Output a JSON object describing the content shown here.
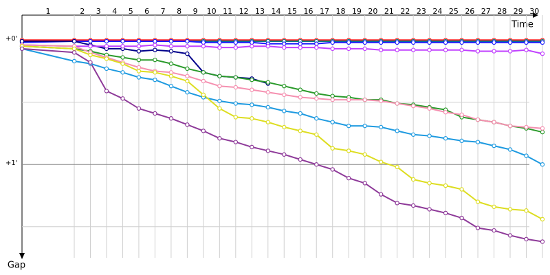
{
  "chart_data": {
    "type": "line",
    "x_label": "Time",
    "y_label": "Gap",
    "x": [
      0,
      1,
      2,
      3,
      4,
      5,
      6,
      7,
      8,
      9,
      10,
      11,
      12,
      13,
      14,
      15,
      16,
      17,
      18,
      19,
      20,
      21,
      22,
      23,
      24,
      25,
      26,
      27,
      28,
      29,
      30
    ],
    "xlim": [
      0,
      30
    ],
    "xticks": [
      1,
      2,
      3,
      4,
      5,
      6,
      7,
      8,
      9,
      10,
      11,
      12,
      13,
      14,
      15,
      16,
      17,
      18,
      19,
      20,
      21,
      22,
      23,
      24,
      25,
      26,
      27,
      28,
      29,
      30
    ],
    "ylim": [
      -0.2,
      1.75
    ],
    "y_inverted": true,
    "yticks": [
      {
        "value": 0,
        "label": "+0'"
      },
      {
        "value": 1,
        "label": "+1'"
      }
    ],
    "minor_yticks": [
      0.5,
      1.5
    ],
    "grid": true,
    "series": [
      {
        "color": "#ff2020",
        "values": [
          0,
          0,
          0,
          0,
          0,
          0,
          0,
          0,
          0,
          0,
          0,
          0,
          0,
          0,
          0,
          0,
          0,
          0,
          0,
          0,
          0,
          0,
          0,
          0,
          0,
          0,
          0,
          0,
          0,
          0,
          0
        ]
      },
      {
        "color": "#008080",
        "values": [
          0.01,
          0.01,
          0.01,
          0.01,
          0.01,
          0.01,
          0.01,
          0.01,
          0.01,
          0.01,
          0.01,
          0.01,
          0.01,
          0.01,
          0.01,
          0.01,
          0.01,
          0.01,
          0.01,
          0.01,
          0.01,
          0.01,
          0.01,
          0.01,
          0.01,
          0.01,
          0.01,
          0.01,
          0.01,
          0.01,
          0.01
        ]
      },
      {
        "color": "#1a1aff",
        "values": [
          0.02,
          0.01,
          0.01,
          0.01,
          0.01,
          0.01,
          0.01,
          0.01,
          0.01,
          0.02,
          0.02,
          0.02,
          0.02,
          0.03,
          0.03,
          0.03,
          0.03,
          0.02,
          0.02,
          0.02,
          0.02,
          0.02,
          0.02,
          0.02,
          0.02,
          0.02,
          0.02,
          0.02,
          0.02,
          0.02,
          0.02
        ]
      },
      {
        "color": "#00008b",
        "values": [
          0.01,
          0.01,
          0.04,
          0.07,
          0.07,
          0.09,
          0.08,
          0.09,
          0.11,
          0.26,
          0.29,
          0.3,
          0.31,
          0.35,
          null,
          null,
          null,
          null,
          null,
          null,
          null,
          null,
          null,
          null,
          null,
          null,
          null,
          null,
          null,
          null,
          null
        ]
      },
      {
        "color": "#c040ff",
        "values": [
          0.04,
          0.05,
          0.05,
          0.05,
          0.05,
          0.05,
          0.04,
          0.05,
          0.05,
          0.05,
          0.06,
          0.06,
          0.05,
          0.05,
          0.06,
          0.06,
          0.06,
          0.07,
          0.07,
          0.07,
          0.08,
          0.08,
          0.08,
          0.08,
          0.08,
          0.08,
          0.09,
          0.09,
          0.09,
          0.08,
          0.11
        ]
      },
      {
        "color": "#2a9a2a",
        "values": [
          0.05,
          0.07,
          0.09,
          0.12,
          0.14,
          0.16,
          0.16,
          0.19,
          0.23,
          0.26,
          0.29,
          0.3,
          0.32,
          0.34,
          0.37,
          0.4,
          0.43,
          0.45,
          0.46,
          0.48,
          0.48,
          0.51,
          0.52,
          0.54,
          0.56,
          0.62,
          0.64,
          0.66,
          0.69,
          0.71,
          0.74
        ]
      },
      {
        "color": "#f590b0",
        "values": [
          0.04,
          0.05,
          0.1,
          0.14,
          0.18,
          0.22,
          0.25,
          0.26,
          0.29,
          0.33,
          0.37,
          0.38,
          0.4,
          0.42,
          0.44,
          0.46,
          0.47,
          0.48,
          0.48,
          0.48,
          0.49,
          0.51,
          0.53,
          0.55,
          0.58,
          0.6,
          0.64,
          0.66,
          0.69,
          0.7,
          0.71
        ]
      },
      {
        "color": "#1e9ae0",
        "values": [
          0.07,
          0.17,
          0.19,
          0.23,
          0.26,
          0.3,
          0.32,
          0.37,
          0.42,
          0.46,
          0.49,
          0.51,
          0.52,
          0.54,
          0.57,
          0.59,
          0.63,
          0.66,
          0.69,
          0.69,
          0.7,
          0.73,
          0.76,
          0.77,
          0.79,
          0.81,
          0.82,
          0.85,
          0.88,
          0.93,
          1.0
        ]
      },
      {
        "color": "#dddd20",
        "values": [
          0.05,
          0.07,
          0.12,
          0.15,
          0.19,
          0.25,
          0.26,
          0.29,
          0.33,
          0.44,
          0.55,
          0.62,
          0.63,
          0.66,
          0.7,
          0.73,
          0.76,
          0.87,
          0.89,
          0.92,
          0.98,
          1.02,
          1.12,
          1.15,
          1.17,
          1.2,
          1.3,
          1.34,
          1.36,
          1.37,
          1.44
        ]
      },
      {
        "color": "#8e3a99",
        "values": [
          0.07,
          0.1,
          0.18,
          0.41,
          0.47,
          0.55,
          0.59,
          0.63,
          0.68,
          0.73,
          0.79,
          0.82,
          0.86,
          0.89,
          0.92,
          0.96,
          1.0,
          1.04,
          1.11,
          1.15,
          1.24,
          1.31,
          1.33,
          1.36,
          1.39,
          1.43,
          1.51,
          1.53,
          1.57,
          1.6,
          1.62
        ]
      }
    ]
  }
}
